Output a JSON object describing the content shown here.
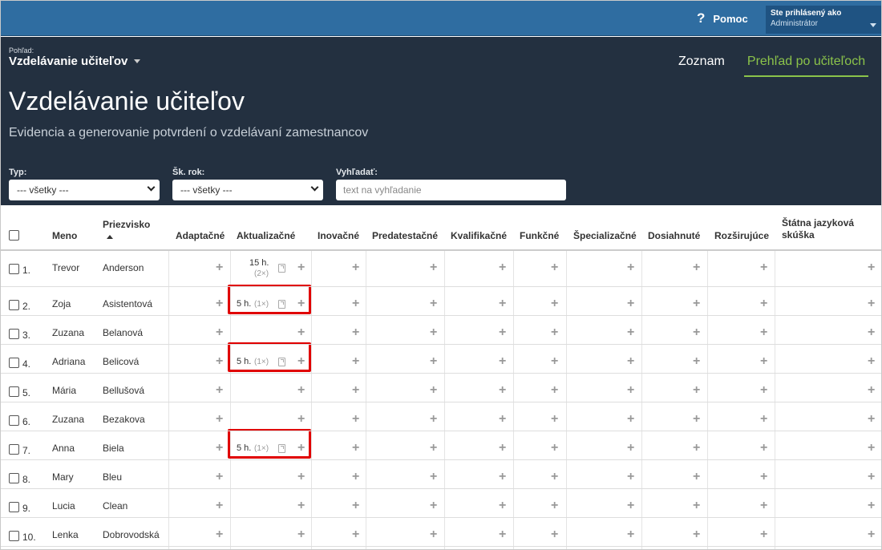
{
  "topbar": {
    "help_label": "Pomoc",
    "help_icon": "question-icon",
    "user_line1": "Ste prihlásený ako",
    "user_line2": "Administrátor"
  },
  "header": {
    "view_label": "Pohľad:",
    "view_name": "Vzdelávanie učiteľov",
    "tabs": [
      {
        "label": "Zoznam",
        "active": false
      },
      {
        "label": "Prehľad po učiteľoch",
        "active": true
      }
    ],
    "title": "Vzdelávanie učiteľov",
    "subtitle": "Evidencia a generovanie potvrdení o vzdelávaní zamestnancov"
  },
  "filters": {
    "type_label": "Typ:",
    "type_value": "--- všetky ---",
    "year_label": "Šk. rok:",
    "year_value": "--- všetky ---",
    "search_label": "Vyhľadať:",
    "search_placeholder": "text na vyhľadanie"
  },
  "table": {
    "columns": [
      "Meno",
      "Priezvisko",
      "Adaptačné",
      "Aktualizačné",
      "Inovačné",
      "Predatestačné",
      "Kvalifikačné",
      "Funkčné",
      "Špecializačné",
      "Dosiahnuté",
      "Rozširujúce",
      "Štátna jazyková skúška"
    ],
    "rows": [
      {
        "num": "1.",
        "first": "Trevor",
        "last": "Anderson",
        "hours": "15 h.",
        "count": "(2×)"
      },
      {
        "num": "2.",
        "first": "Zoja",
        "last": "Asistentová",
        "hours": "5 h.",
        "count": "(1×)"
      },
      {
        "num": "3.",
        "first": "Zuzana",
        "last": "Belanová",
        "hours": "",
        "count": ""
      },
      {
        "num": "4.",
        "first": "Adriana",
        "last": "Belicová",
        "hours": "5 h.",
        "count": "(1×)"
      },
      {
        "num": "5.",
        "first": "Mária",
        "last": "Bellušová",
        "hours": "",
        "count": ""
      },
      {
        "num": "6.",
        "first": "Zuzana",
        "last": "Bezakova",
        "hours": "",
        "count": ""
      },
      {
        "num": "7.",
        "first": "Anna",
        "last": "Biela",
        "hours": "5 h.",
        "count": "(1×)"
      },
      {
        "num": "8.",
        "first": "Mary",
        "last": "Bleu",
        "hours": "",
        "count": ""
      },
      {
        "num": "9.",
        "first": "Lucia",
        "last": "Clean",
        "hours": "",
        "count": ""
      },
      {
        "num": "10.",
        "first": "Lenka",
        "last": "Dobrovodská",
        "hours": "",
        "count": ""
      }
    ]
  },
  "colors": {
    "topbar": "#2f6da1",
    "header": "#233040",
    "active_tab": "#8bc34a",
    "highlight": "#e00000"
  }
}
